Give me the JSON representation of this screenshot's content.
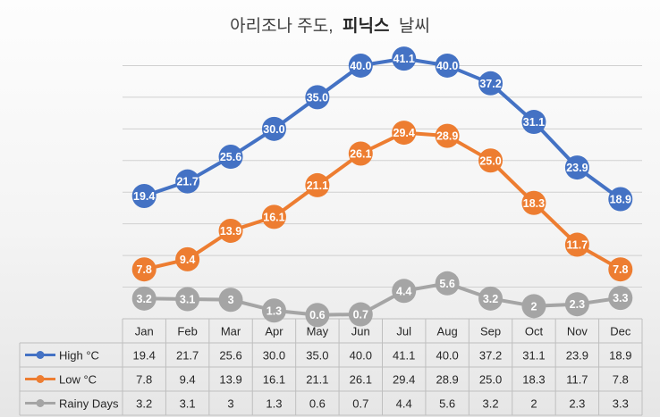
{
  "chart_data": {
    "type": "line",
    "title_normal": "아리조나 주도,",
    "title_bold": "피닉스",
    "title_suffix": "날씨",
    "categories": [
      "Jan",
      "Feb",
      "Mar",
      "Apr",
      "May",
      "Jun",
      "Jul",
      "Aug",
      "Sep",
      "Oct",
      "Nov",
      "Dec"
    ],
    "series": [
      {
        "name": "High °C",
        "color": "#4472c4",
        "values": [
          19.4,
          21.7,
          25.6,
          30.0,
          35.0,
          40.0,
          41.1,
          40.0,
          37.2,
          31.1,
          23.9,
          18.9
        ],
        "labels": [
          "19.4",
          "21.7",
          "25.6",
          "30.0",
          "35.0",
          "40.0",
          "41.1",
          "40.0",
          "37.2",
          "31.1",
          "23.9",
          "18.9"
        ]
      },
      {
        "name": "Low °C",
        "color": "#ed7d31",
        "values": [
          7.8,
          9.4,
          13.9,
          16.1,
          21.1,
          26.1,
          29.4,
          28.9,
          25.0,
          18.3,
          11.7,
          7.8
        ],
        "labels": [
          "7.8",
          "9.4",
          "13.9",
          "16.1",
          "21.1",
          "26.1",
          "29.4",
          "28.9",
          "25.0",
          "18.3",
          "11.7",
          "7.8"
        ]
      },
      {
        "name": "Rainy Days",
        "color": "#a5a5a5",
        "values": [
          3.2,
          3.1,
          3,
          1.3,
          0.6,
          0.7,
          4.4,
          5.6,
          3.2,
          2,
          2.3,
          3.3
        ],
        "labels": [
          "3.2",
          "3.1",
          "3",
          "1.3",
          "0.6",
          "0.7",
          "4.4",
          "5.6",
          "3.2",
          "2",
          "2.3",
          "3.3"
        ]
      }
    ],
    "ylim": [
      0,
      45
    ],
    "grid": true,
    "legend": "data-table"
  }
}
